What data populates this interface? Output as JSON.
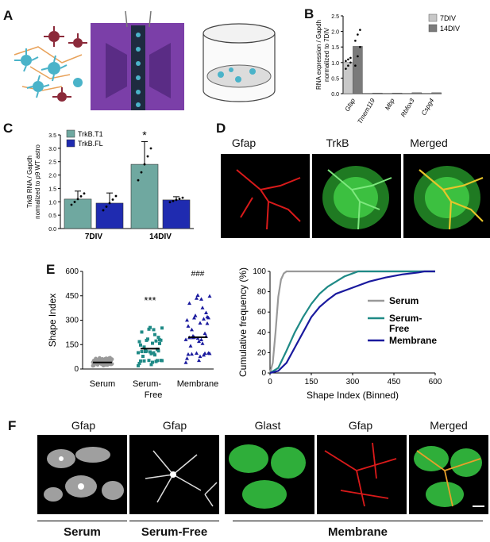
{
  "panel_labels": [
    "A",
    "B",
    "C",
    "D",
    "E",
    "F"
  ],
  "colors": {
    "c7div": "#c8c8c8",
    "c14div": "#7a7a7a",
    "trkb_t1": "#6fa8a0",
    "trkb_fl": "#1f2bb0",
    "serum": "#999999",
    "serum_free": "#1f8a86",
    "membrane": "#1a1a9e",
    "glast": "#2fae3a",
    "gfap_red": "#d91a1a",
    "insert_purple": "#7b3fa8"
  },
  "chart_data": [
    {
      "id": "B",
      "type": "bar",
      "ylabel_line1": "RNA expression / Gapdh",
      "ylabel_line2": "normalized to 7DIV",
      "categories": [
        "Gfap",
        "Tmem119",
        "Mbp",
        "Rbfox3",
        "Cspg4"
      ],
      "series": [
        {
          "name": "7DIV",
          "values": [
            1.0,
            0.01,
            0.01,
            0.01,
            0.01
          ]
        },
        {
          "name": "14DIV",
          "values": [
            1.52,
            0.02,
            0.02,
            0.03,
            0.03
          ]
        }
      ],
      "ylim": [
        0,
        2.5
      ],
      "yticks": [
        "0.0",
        "0.5",
        "1.0",
        "1.5",
        "2.0",
        "2.5"
      ],
      "legend": [
        "7DIV",
        "14DIV"
      ]
    },
    {
      "id": "C",
      "type": "bar",
      "ylabel_line1": "TrkB RNA / Gapdh",
      "ylabel_line2": "normalized to p9 WT astro",
      "categories": [
        "7DIV",
        "14DIV"
      ],
      "series": [
        {
          "name": "TrkB.T1",
          "values": [
            1.1,
            2.4
          ],
          "err": [
            0.3,
            0.85
          ]
        },
        {
          "name": "TrkB.FL",
          "values": [
            0.95,
            1.07
          ],
          "err": [
            0.38,
            0.12
          ]
        }
      ],
      "ylim": [
        0,
        3.5
      ],
      "yticks": [
        "0.0",
        "0.5",
        "1.0",
        "1.5",
        "2.0",
        "2.5",
        "3.0",
        "3.5"
      ],
      "annotation": "*",
      "legend": [
        "TrkB.T1",
        "TrkB.FL"
      ]
    },
    {
      "id": "E-left",
      "type": "scatter",
      "ylabel": "Shape Index",
      "categories": [
        "Serum",
        "Serum-Free",
        "Membrane"
      ],
      "means": [
        40,
        125,
        195
      ],
      "ylim": [
        0,
        600
      ],
      "yticks": [
        "0",
        "150",
        "300",
        "450",
        "600"
      ],
      "annotations": [
        "***",
        "###"
      ]
    },
    {
      "id": "E-right",
      "type": "line",
      "xlabel": "Shape Index (Binned)",
      "ylabel": "Cumulative frequency (%)",
      "xlim": [
        0,
        600
      ],
      "ylim": [
        0,
        100
      ],
      "xticks": [
        "0",
        "150",
        "300",
        "450",
        "600"
      ],
      "yticks": [
        "0",
        "20",
        "40",
        "60",
        "80",
        "100"
      ],
      "series": [
        {
          "name": "Serum",
          "x": [
            0,
            10,
            20,
            30,
            40,
            50,
            60,
            80,
            600
          ],
          "y": [
            0,
            10,
            40,
            75,
            92,
            98,
            100,
            100,
            100
          ]
        },
        {
          "name": "Serum-Free",
          "x": [
            0,
            30,
            60,
            90,
            120,
            150,
            180,
            210,
            240,
            270,
            300,
            320,
            600
          ],
          "y": [
            0,
            5,
            22,
            40,
            55,
            68,
            78,
            85,
            90,
            95,
            98,
            100,
            100
          ]
        },
        {
          "name": "Membrane",
          "x": [
            0,
            30,
            60,
            90,
            120,
            150,
            180,
            210,
            240,
            300,
            360,
            420,
            480,
            540,
            560,
            600
          ],
          "y": [
            0,
            2,
            10,
            25,
            40,
            55,
            65,
            72,
            78,
            84,
            90,
            94,
            97,
            99,
            100,
            100
          ]
        }
      ],
      "legend": [
        "Serum",
        "Serum-\nFree",
        "Membrane"
      ]
    }
  ],
  "panel_d": {
    "titles": [
      "Gfap",
      "TrkB",
      "Merged"
    ]
  },
  "panel_f": {
    "titles": [
      "Gfap",
      "Gfap",
      "Glast",
      "Gfap",
      "Merged"
    ],
    "groups": [
      "Serum",
      "Serum-Free",
      "Membrane"
    ]
  }
}
